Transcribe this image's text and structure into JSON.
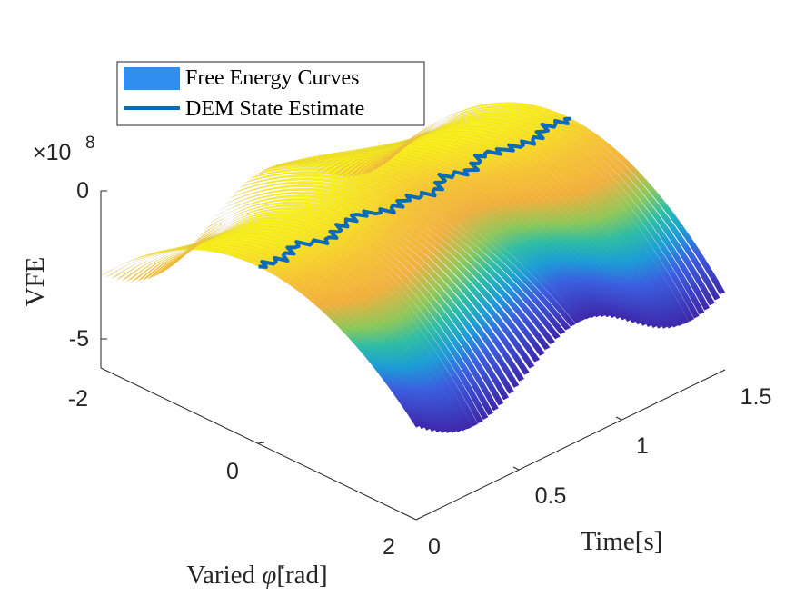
{
  "chart_data": {
    "type": "surface3d",
    "xlabel": "Time[s]",
    "ylabel_text": "Varied ",
    "ylabel_symbol": "φ̇",
    "ylabel_unit": "[rad]",
    "zlabel": "VFE",
    "z_exponent_prefix": "×10",
    "z_exponent_power": "8",
    "xlim": [
      0,
      1.5
    ],
    "ylim": [
      -2,
      2
    ],
    "zlim": [
      -6,
      0
    ],
    "x_ticks": [
      "0",
      "0.5",
      "1",
      "1.5"
    ],
    "y_ticks": [
      "-2",
      "0",
      "2"
    ],
    "z_ticks": [
      "0",
      "-5"
    ],
    "legend": {
      "position": "top-left",
      "entries": [
        {
          "label": "Free Energy Curves",
          "color": "#2f8ef0",
          "style": "patch"
        },
        {
          "label": "DEM State Estimate",
          "color": "#0b6bb8",
          "style": "line"
        }
      ]
    },
    "colormap": "parula",
    "surface_description_units": "z = peak(t) - curvature(t) * (phi - center(t))^2",
    "estimate_series": {
      "name": "DEM State Estimate",
      "t": [
        0.0,
        0.1,
        0.2,
        0.3,
        0.4,
        0.5,
        0.6,
        0.7,
        0.8,
        0.9,
        1.0,
        1.1,
        1.2,
        1.3,
        1.4,
        1.5
      ],
      "phi": [
        0.0,
        0.05,
        -0.05,
        0.1,
        0.0,
        -0.05,
        0.1,
        0.05,
        0.15,
        0.0,
        0.1,
        -0.05,
        0.05,
        0.1,
        0.0,
        0.05
      ],
      "vfe": [
        0,
        0,
        0,
        0,
        0,
        0,
        0,
        0,
        0,
        0,
        0,
        0,
        0,
        0,
        0,
        0
      ]
    }
  }
}
